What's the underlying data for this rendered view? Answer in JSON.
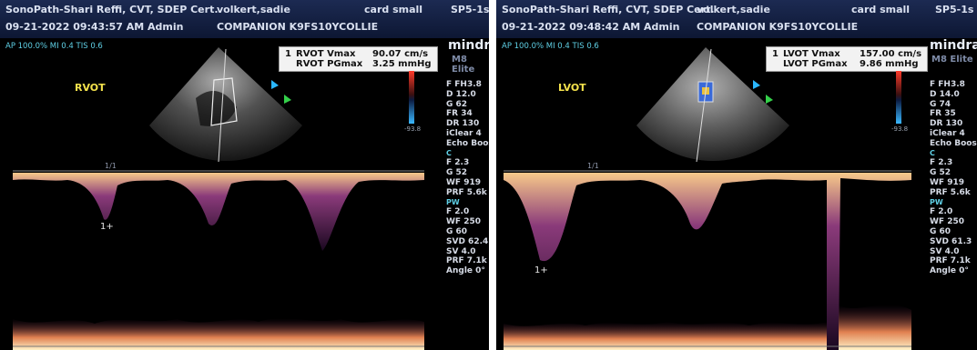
{
  "left": {
    "header_line1": "SonoPath-Shari Reffi, CVT, SDEP Cert.",
    "header_owner": "volkert,sadie",
    "header_preset": "card small",
    "header_probe": "SP5-1s",
    "header_date": "09-21-2022 09:43:57 AM Admin",
    "header_patient": "COMPANION K9FS10YCOLLIE",
    "power_line": "AP 100.0%  MI 0.4  TIS 0.6",
    "brand": "mindra",
    "model": "M8 Elite",
    "view_label": "RVOT",
    "meas_number": "1",
    "meas_rows": [
      {
        "label": "RVOT Vmax",
        "value": "90.07 cm/s"
      },
      {
        "label": "RVOT PGmax",
        "value": "3.25 mmHg"
      }
    ],
    "params_b": [
      "F FH3.8",
      "D 12.0",
      "G 62",
      "FR 34",
      "DR 130",
      "iClear 4",
      "Echo Boos"
    ],
    "params_c_head": "C",
    "params_c": [
      "F 2.3",
      "G 52",
      "WF 919",
      "PRF 5.6k"
    ],
    "params_pw_head": "PW",
    "params_pw": [
      "F 2.0",
      "WF 250",
      "G 60",
      "SVD 62.4",
      "SV 4.0",
      "PRF 7.1k",
      "Angle 0°"
    ],
    "cursor_label": "1+",
    "scale_top": "-93.8",
    "speed_label": "1/1"
  },
  "right": {
    "header_line1": "SonoPath-Shari Reffi, CVT, SDEP Cert.",
    "header_owner": "volkert,sadie",
    "header_preset": "card small",
    "header_probe": "SP5-1s",
    "header_date": "09-21-2022 09:48:42 AM Admin",
    "header_patient": "COMPANION K9FS10YCOLLIE",
    "power_line": "AP 100.0%  MI 0.4  TIS 0.6",
    "brand": "mindra",
    "model": "M8 Elite",
    "view_label": "LVOT",
    "meas_number": "1",
    "meas_rows": [
      {
        "label": "LVOT Vmax",
        "value": "157.00 cm/s"
      },
      {
        "label": "LVOT PGmax",
        "value": "9.86 mmHg"
      }
    ],
    "params_b": [
      "F FH3.8",
      "D 14.0",
      "G 74",
      "FR 35",
      "DR 130",
      "iClear 4",
      "Echo Boos"
    ],
    "params_c_head": "C",
    "params_c": [
      "F 2.3",
      "G 52",
      "WF 919",
      "PRF 5.6k"
    ],
    "params_pw_head": "PW",
    "params_pw": [
      "F 2.0",
      "WF 250",
      "G 60",
      "SVD 61.3",
      "SV 4.0",
      "PRF 7.1k",
      "Angle 0°"
    ],
    "cursor_label": "1+",
    "scale_top": "-93.8",
    "speed_label": "1/1"
  },
  "colors": {
    "header_bg": "#1c2a52",
    "accent_cyan": "#5fd0e6",
    "label_yellow": "#f4e24c",
    "doppler_glow": "#f0b060"
  }
}
